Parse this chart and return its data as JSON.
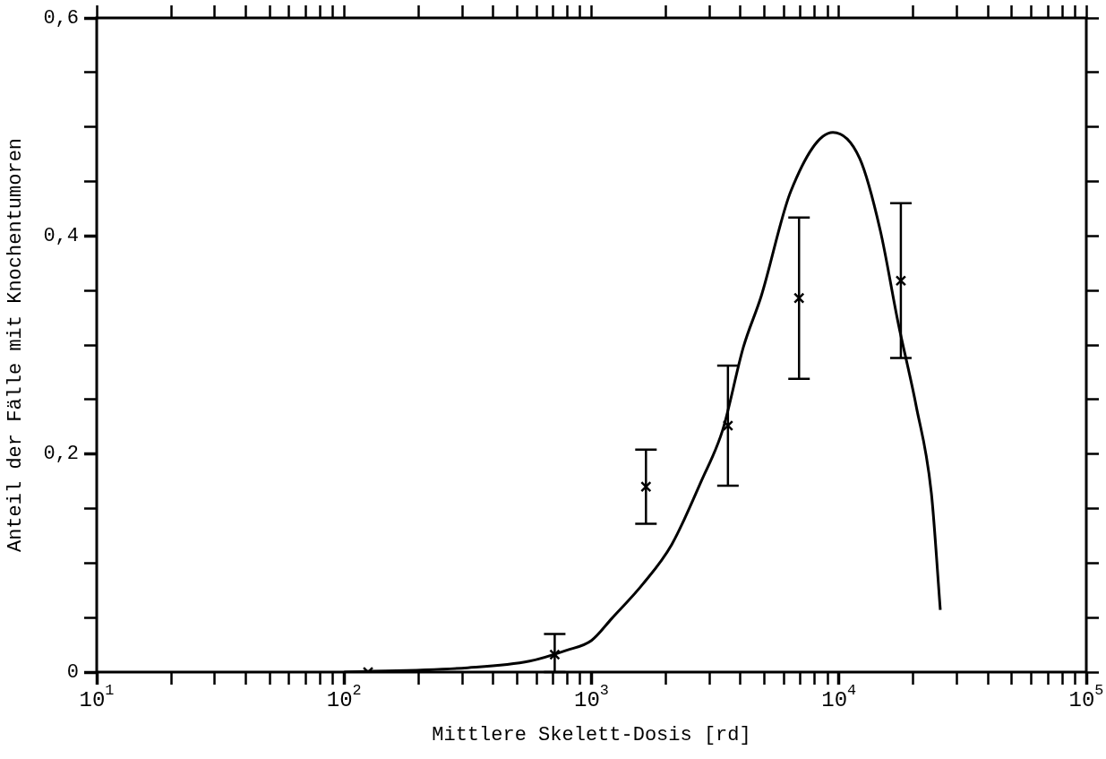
{
  "chart_data": {
    "type": "scatter",
    "xlabel": "Mittlere Skelett-Dosis [rd]",
    "ylabel": "Anteil der Fälle mit Knochentumoren",
    "log": "x",
    "xlim": [
      10,
      100000
    ],
    "ylim": [
      0,
      0.6
    ],
    "xticks": [
      {
        "value": 10,
        "label": "10$^{1}$"
      },
      {
        "value": 20,
        "label": null
      },
      {
        "value": 30,
        "label": null
      },
      {
        "value": 40,
        "label": null
      },
      {
        "value": 50,
        "label": null
      },
      {
        "value": 60,
        "label": null
      },
      {
        "value": 70,
        "label": null
      },
      {
        "value": 80,
        "label": null
      },
      {
        "value": 90,
        "label": null
      },
      {
        "value": 100,
        "label": "10$^{2}$"
      },
      {
        "value": 200,
        "label": null
      },
      {
        "value": 300,
        "label": null
      },
      {
        "value": 400,
        "label": null
      },
      {
        "value": 500,
        "label": null
      },
      {
        "value": 600,
        "label": null
      },
      {
        "value": 700,
        "label": null
      },
      {
        "value": 800,
        "label": null
      },
      {
        "value": 900,
        "label": null
      },
      {
        "value": 1000,
        "label": "10$^{3}$"
      },
      {
        "value": 2000,
        "label": null
      },
      {
        "value": 3000,
        "label": null
      },
      {
        "value": 4000,
        "label": null
      },
      {
        "value": 5000,
        "label": null
      },
      {
        "value": 6000,
        "label": null
      },
      {
        "value": 7000,
        "label": null
      },
      {
        "value": 8000,
        "label": null
      },
      {
        "value": 9000,
        "label": null
      },
      {
        "value": 10000,
        "label": "10$^{4}$"
      },
      {
        "value": 20000,
        "label": null
      },
      {
        "value": 30000,
        "label": null
      },
      {
        "value": 40000,
        "label": null
      },
      {
        "value": 50000,
        "label": null
      },
      {
        "value": 60000,
        "label": null
      },
      {
        "value": 70000,
        "label": null
      },
      {
        "value": 80000,
        "label": null
      },
      {
        "value": 90000,
        "label": null
      },
      {
        "value": 100000,
        "label": "10$^{5}$"
      }
    ],
    "yticks": [
      {
        "value": 0,
        "label": "0"
      },
      {
        "value": 0.05,
        "label": null
      },
      {
        "value": 0.1,
        "label": null
      },
      {
        "value": 0.15,
        "label": null
      },
      {
        "value": 0.2,
        "label": "0,2"
      },
      {
        "value": 0.25,
        "label": null
      },
      {
        "value": 0.3,
        "label": null
      },
      {
        "value": 0.35,
        "label": null
      },
      {
        "value": 0.4,
        "label": "0,4"
      },
      {
        "value": 0.45,
        "label": null
      },
      {
        "value": 0.5,
        "label": null
      },
      {
        "value": 0.55,
        "label": null
      },
      {
        "value": 0.6,
        "label": "0,6"
      }
    ],
    "series": [
      {
        "type": "scatter",
        "marker": "cross",
        "color": "#000000",
        "x": [
          125,
          710,
          1660,
          3560,
          6900,
          17800
        ],
        "values": [
          0,
          0.016,
          0.17,
          0.226,
          0.343,
          0.359
        ],
        "errors": [
          null,
          [
            0,
            0.035
          ],
          0.034,
          0.055,
          0.074,
          0.071
        ]
      },
      {
        "type": "line",
        "marker": "none",
        "color": "#000000",
        "x": [
          100,
          316,
          562,
          794,
          1000,
          1206,
          1603,
          2110,
          2776,
          3390,
          4110,
          4856,
          6390,
          9460,
          12140,
          14700,
          17370,
          20530,
          23650,
          25700
        ],
        "values": [
          0,
          0.004,
          0.01,
          0.02,
          0.029,
          0.049,
          0.08,
          0.117,
          0.175,
          0.222,
          0.298,
          0.345,
          0.441,
          0.495,
          0.471,
          0.405,
          0.32,
          0.244,
          0.164,
          0.057
        ]
      }
    ]
  }
}
